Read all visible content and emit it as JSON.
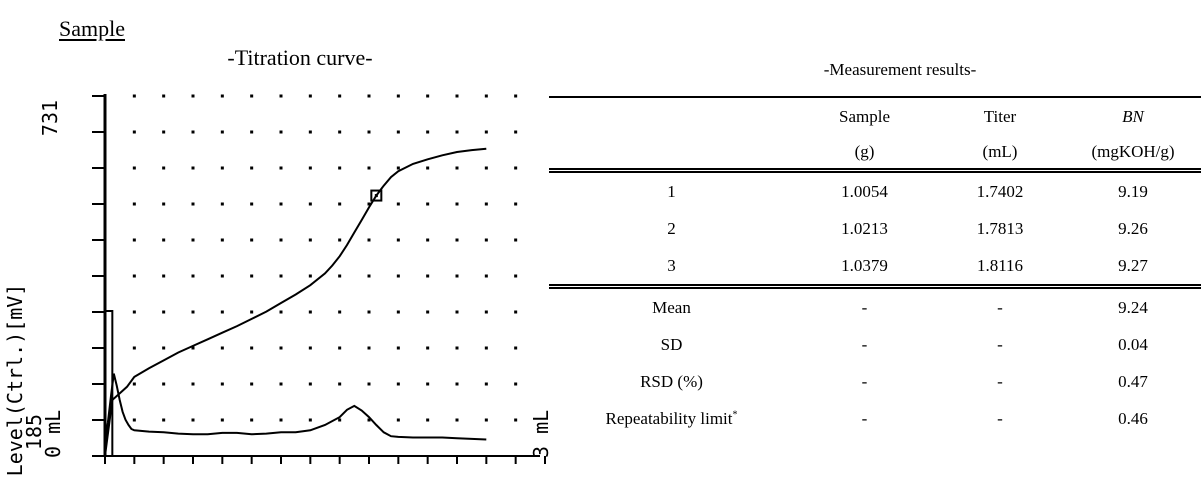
{
  "sample_label": "Sample",
  "chart_title": "-Titration curve-",
  "chart_data": {
    "type": "line",
    "title": "-Titration curve-",
    "xlabel": "mL",
    "x_min_label": "0 mL",
    "x_max_label": "3 mL",
    "xlim": [
      0,
      3
    ],
    "ylabel": "Level(Ctrl.)[mV]",
    "y_top_label": "731",
    "y_bottom_label": "185",
    "ylim": [
      185,
      731
    ],
    "grid": "dotted",
    "series": [
      {
        "x": [
          0.0,
          0.05,
          0.1,
          0.15,
          0.2,
          0.3,
          0.4,
          0.5,
          0.6,
          0.7,
          0.8,
          0.9,
          1.0,
          1.1,
          1.2,
          1.3,
          1.4,
          1.5,
          1.55,
          1.6,
          1.65,
          1.7,
          1.75,
          1.8,
          1.85,
          1.9,
          1.95,
          2.0,
          2.1,
          2.2,
          2.3,
          2.4,
          2.5,
          2.6
        ],
        "y": [
          185,
          270,
          280,
          290,
          305,
          318,
          330,
          342,
          352,
          362,
          372,
          382,
          393,
          404,
          417,
          430,
          444,
          462,
          474,
          488,
          505,
          524,
          543,
          562,
          580,
          595,
          608,
          617,
          628,
          635,
          641,
          646,
          649,
          651
        ]
      },
      {
        "x": [
          0.0,
          0.02,
          0.04,
          0.06,
          0.08,
          0.1,
          0.12,
          0.14,
          0.16,
          0.18,
          0.2,
          0.3,
          0.4,
          0.5,
          0.6,
          0.7,
          0.8,
          0.9,
          1.0,
          1.1,
          1.2,
          1.3,
          1.4,
          1.5,
          1.6,
          1.65,
          1.7,
          1.75,
          1.8,
          1.85,
          1.9,
          1.95,
          2.0,
          2.1,
          2.2,
          2.3,
          2.4,
          2.5,
          2.6
        ],
        "y": [
          205,
          236,
          275,
          310,
          292,
          270,
          252,
          240,
          232,
          226,
          224,
          222,
          221,
          219,
          218,
          218,
          220,
          220,
          218,
          219,
          221,
          221,
          224,
          232,
          244,
          255,
          261,
          254,
          244,
          232,
          221,
          215,
          214,
          213,
          213,
          213,
          212,
          211,
          210
        ]
      }
    ],
    "marker": {
      "x": 1.85,
      "y": 580
    },
    "initial_vertical": {
      "x": 0.05,
      "y_from": 405,
      "y_to": 185
    }
  },
  "results": {
    "title": "-Measurement results-",
    "header_row1": [
      "",
      "Sample",
      "Titer",
      "BN"
    ],
    "header_row2": [
      "",
      "(g)",
      "(mL)",
      "(mgKOH/g)"
    ],
    "rows": [
      [
        "1",
        "1.0054",
        "1.7402",
        "9.19"
      ],
      [
        "2",
        "1.0213",
        "1.7813",
        "9.26"
      ],
      [
        "3",
        "1.0379",
        "1.8116",
        "9.27"
      ]
    ],
    "stats": [
      [
        "Mean",
        "-",
        "-",
        "9.24"
      ],
      [
        "SD",
        "-",
        "-",
        "0.04"
      ],
      [
        "RSD (%)",
        "-",
        "-",
        "0.47"
      ],
      [
        "Repeatability limit",
        "-",
        "-",
        "0.46"
      ]
    ],
    "footnote_marker": "*"
  }
}
